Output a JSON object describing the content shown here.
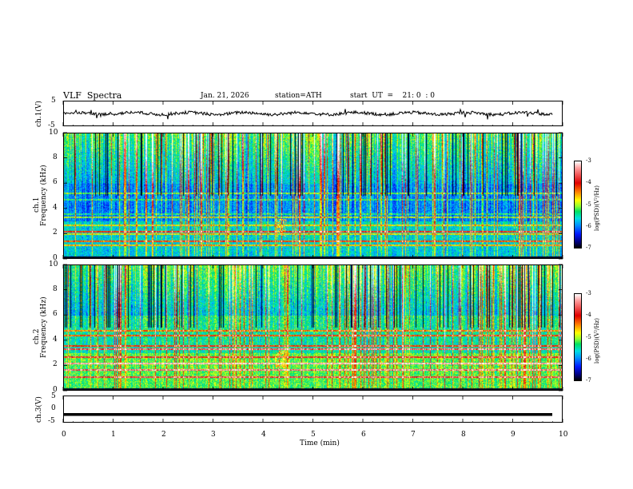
{
  "header": {
    "title": "VLF  Spectra",
    "date": "Jan. 21, 2026",
    "station": "station=ATH",
    "start": "start  UT  =    21: 0  : 0"
  },
  "chart_data": [
    {
      "type": "line",
      "name": "ch1-waveform",
      "ylabel": "ch.1(V)",
      "ylim": [
        -5,
        5
      ],
      "yticks": [
        "5",
        "-5"
      ],
      "baseline": 0.0
    },
    {
      "type": "heatmap",
      "name": "ch1-spectrogram",
      "ylabel_line1": "ch.1",
      "ylabel_line2": "Frequency  (kHz)",
      "ylim": [
        0,
        10
      ],
      "yticks": [
        "0",
        "2",
        "4",
        "6",
        "8",
        "10"
      ],
      "colorbar": {
        "label": "log(PSD)(V²/Hz)",
        "range": [
          -7,
          -3
        ],
        "ticks": [
          "-3",
          "-4",
          "-5",
          "-6",
          "-7"
        ]
      }
    },
    {
      "type": "heatmap",
      "name": "ch2-spectrogram",
      "ylabel_line1": "ch.2",
      "ylabel_line2": "Frequency  (kHz)",
      "ylim": [
        0,
        10
      ],
      "yticks": [
        "0",
        "2",
        "4",
        "6",
        "8",
        "10"
      ],
      "colorbar": {
        "label": "log(PSD)(V²/Hz)",
        "range": [
          -7,
          -3
        ],
        "ticks": [
          "-3",
          "-4",
          "-5",
          "-6",
          "-7"
        ]
      }
    },
    {
      "type": "line",
      "name": "ch3-waveform",
      "ylabel": "ch.3(V)",
      "ylim": [
        -5,
        5
      ],
      "yticks": [
        "5",
        "0",
        "-5"
      ],
      "baseline": -2.0
    }
  ],
  "xaxis": {
    "label": "Time  (min)",
    "range": [
      0,
      10
    ],
    "ticks": [
      "0",
      "1",
      "2",
      "3",
      "4",
      "5",
      "6",
      "7",
      "8",
      "9",
      "10"
    ]
  },
  "colors": {
    "axis": "#000000",
    "background": "#ffffff"
  }
}
